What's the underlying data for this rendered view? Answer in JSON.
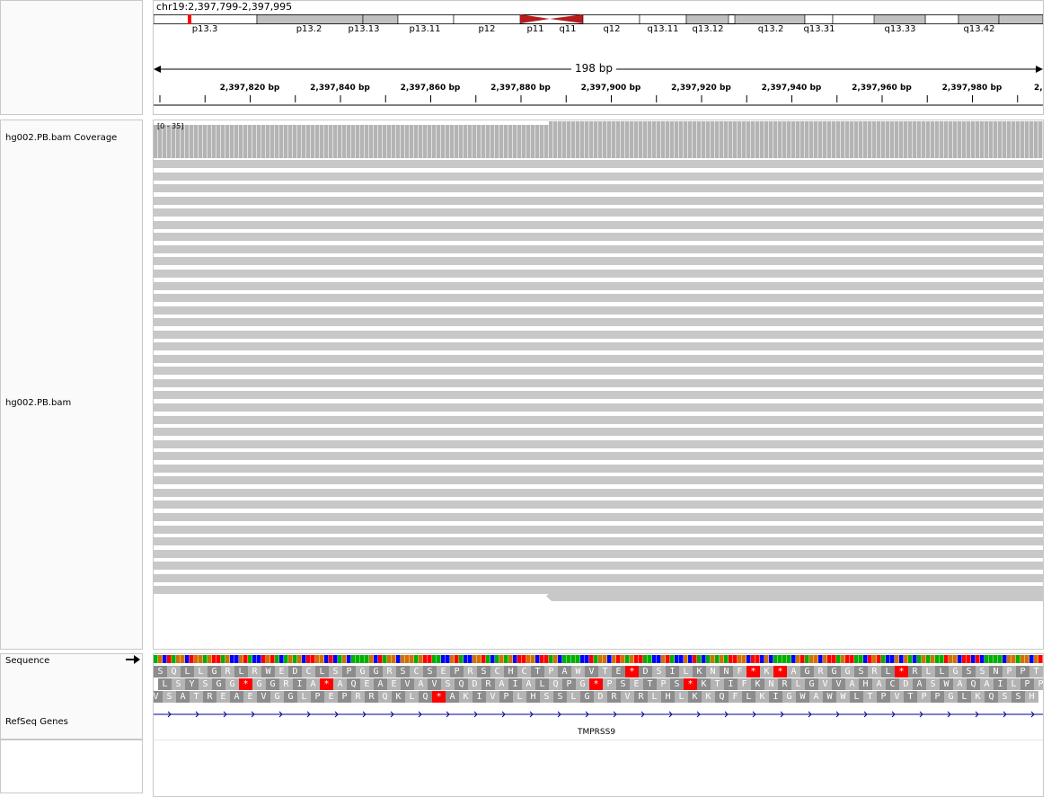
{
  "locus": "chr19:2,397,799-2,397,995",
  "ideogram": {
    "bands": [
      {
        "label": "p13.3",
        "stain": "white"
      },
      {
        "label": "p13.2",
        "stain": "gray"
      },
      {
        "label": "p13.13",
        "stain": "gray"
      },
      {
        "label": "p13.11",
        "stain": "white"
      },
      {
        "label": "p12",
        "stain": "white"
      },
      {
        "label": "p11",
        "stain": "centromere"
      },
      {
        "label": "q11",
        "stain": "centromere"
      },
      {
        "label": "q12",
        "stain": "white"
      },
      {
        "label": "q13.11",
        "stain": "white"
      },
      {
        "label": "q13.12",
        "stain": "gray"
      },
      {
        "label": "q13.2",
        "stain": "gray"
      },
      {
        "label": "q13.31",
        "stain": "white"
      },
      {
        "label": "q13.33",
        "stain": "white"
      },
      {
        "label": "q13.42",
        "stain": "white"
      }
    ],
    "centromere_color": "#b71c1c",
    "current_region_color": "#ff0000"
  },
  "span_label": "198 bp",
  "ruler": {
    "labels": [
      "2,397,820 bp",
      "2,397,840 bp",
      "2,397,860 bp",
      "2,397,880 bp",
      "2,397,900 bp",
      "2,397,920 bp",
      "2,397,940 bp",
      "2,397,960 bp",
      "2,397,980 bp",
      "2,"
    ]
  },
  "tracks": {
    "coverage_label": "hg002.PB.bam Coverage",
    "coverage_range": "[0 - 35]",
    "alignment_label": "hg002.PB.bam",
    "sequence_label": "Sequence",
    "refseq_label": "RefSeq Genes",
    "arrow_icon": "right-arrow-icon"
  },
  "reads": {
    "count": 36,
    "color": "#c8c8c8"
  },
  "sequence": {
    "base_colors": {
      "A": "#00b000",
      "C": "#0000ff",
      "G": "#d17105",
      "T": "#ff0000"
    },
    "frames": [
      "SQLLGRLRWEDCLSPGGRSCSEPRSCHCTPAWVTE*DSILKNNF*K*AGRGGSRL*RLLGSSNPPT",
      "LSYSGG*GGRIA*AQEAEVAVSQDRAIALQPG*PSETPS*KTIFKNRLGVVAHACDASWAQAILPP",
      "VSATREAEVGGLPEPRRQKLQ*AKIVPLHSSLGDRVRLHLKKQFLKIGWAWWLTPVTPPGLKQSSH"
    ],
    "stop_color": "#ff0000",
    "aa_dark": "#8c8c8c",
    "aa_light": "#b4b4b4"
  },
  "gene": {
    "name": "TMPRSS9",
    "color": "#000096"
  }
}
